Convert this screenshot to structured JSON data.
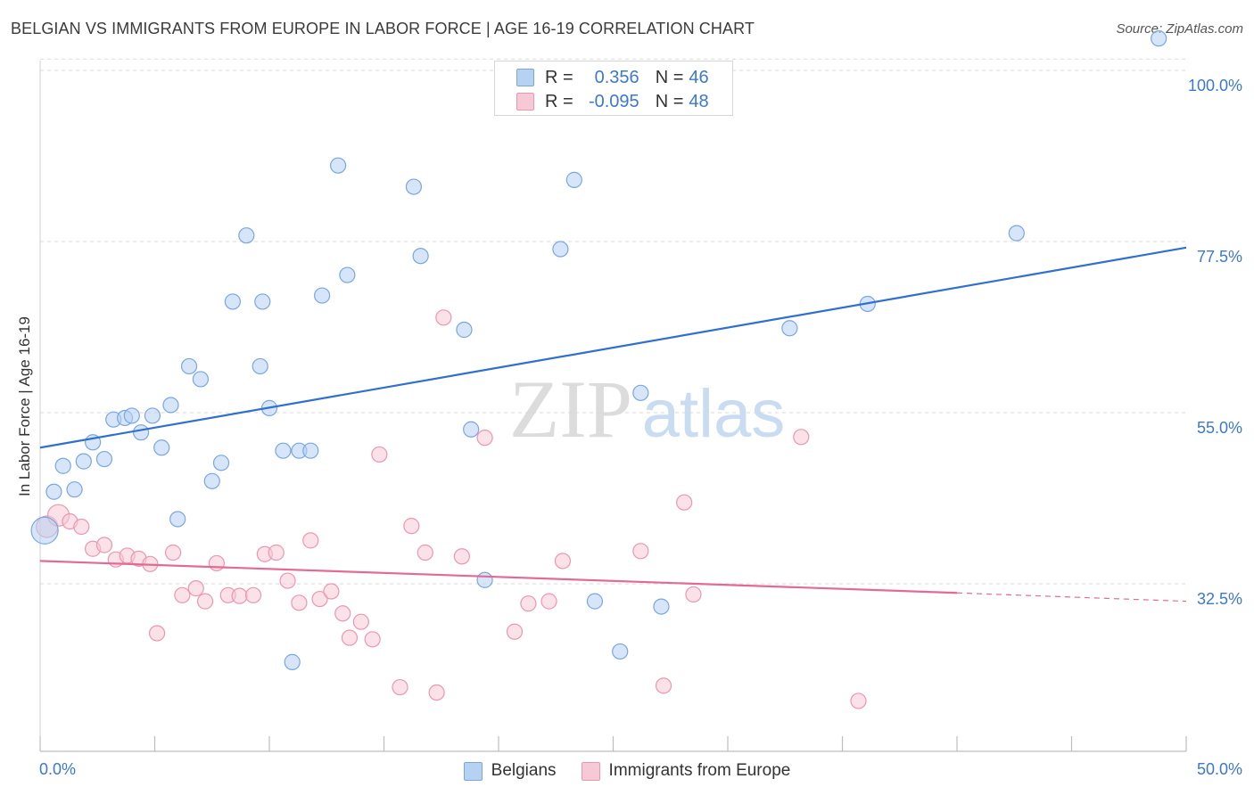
{
  "title": "BELGIAN VS IMMIGRANTS FROM EUROPE IN LABOR FORCE | AGE 16-19 CORRELATION CHART",
  "source": "Source: ZipAtlas.com",
  "watermark": {
    "zip": "ZIP",
    "atlas": "atlas"
  },
  "colors": {
    "blue_fill": "#b5d2f3",
    "blue_stroke": "#7aa6e0",
    "blue_line": "#2f6fcf",
    "pink_fill": "#f7c8d6",
    "pink_stroke": "#eb97b2",
    "pink_line": "#e46a95",
    "tick_label": "#3c78d0",
    "grid": "#d9d9d9"
  },
  "legend": {
    "rows": [
      {
        "r_label": "R =",
        "r_value": "0.356",
        "n_label": "N =",
        "n_value": "46"
      },
      {
        "r_label": "R =",
        "r_value": "-0.095",
        "n_label": "N =",
        "n_value": "48"
      }
    ]
  },
  "bottom_legend": [
    "Belgians",
    "Immigrants from Europe"
  ],
  "chart_data": {
    "type": "scatter",
    "title": "BELGIAN VS IMMIGRANTS FROM EUROPE IN LABOR FORCE | AGE 16-19 CORRELATION CHART",
    "xlabel": "",
    "ylabel": "In Labor Force | Age 16-19",
    "xlim": [
      0,
      50
    ],
    "ylim": [
      9,
      102
    ],
    "x_tick_labels": [
      "0.0%",
      "50.0%"
    ],
    "y_ticks": [
      32.5,
      55.0,
      77.5,
      100.0
    ],
    "y_tick_labels": [
      "32.5%",
      "55.0%",
      "77.5%",
      "100.0%"
    ],
    "grid": true,
    "legend_position": "top-center",
    "series": [
      {
        "name": "Belgians",
        "color": "#7aa6e0",
        "R": 0.356,
        "N": 46,
        "trend": {
          "x0": 0,
          "y0": 50.4,
          "x1": 50,
          "y1": 76.7
        },
        "points": [
          [
            0.2,
            39.5
          ],
          [
            0.6,
            44.6
          ],
          [
            1.0,
            48.0
          ],
          [
            1.5,
            44.9
          ],
          [
            1.9,
            48.6
          ],
          [
            2.3,
            51.1
          ],
          [
            2.8,
            48.9
          ],
          [
            3.2,
            54.1
          ],
          [
            3.7,
            54.3
          ],
          [
            4.0,
            54.6
          ],
          [
            4.4,
            52.4
          ],
          [
            4.9,
            54.6
          ],
          [
            5.3,
            50.4
          ],
          [
            5.7,
            56.0
          ],
          [
            6.0,
            41.0
          ],
          [
            6.5,
            61.1
          ],
          [
            7.0,
            59.4
          ],
          [
            7.5,
            46.0
          ],
          [
            7.9,
            48.4
          ],
          [
            8.4,
            69.6
          ],
          [
            9.0,
            78.3
          ],
          [
            9.6,
            61.1
          ],
          [
            9.7,
            69.6
          ],
          [
            10.0,
            55.6
          ],
          [
            10.6,
            50.0
          ],
          [
            11.0,
            22.2
          ],
          [
            11.3,
            50.0
          ],
          [
            11.8,
            50.0
          ],
          [
            12.3,
            70.4
          ],
          [
            13.0,
            87.5
          ],
          [
            13.4,
            73.1
          ],
          [
            16.3,
            84.7
          ],
          [
            16.6,
            75.6
          ],
          [
            18.5,
            65.9
          ],
          [
            18.8,
            52.8
          ],
          [
            19.4,
            33.0
          ],
          [
            22.7,
            76.5
          ],
          [
            23.3,
            85.6
          ],
          [
            24.2,
            30.2
          ],
          [
            25.3,
            23.6
          ],
          [
            26.2,
            57.6
          ],
          [
            27.1,
            29.5
          ],
          [
            32.7,
            66.1
          ],
          [
            36.1,
            69.3
          ],
          [
            42.6,
            78.6
          ],
          [
            48.8,
            104.2
          ]
        ],
        "point_sizes": {
          "large": [
            [
              0.2,
              39.5
            ]
          ]
        }
      },
      {
        "name": "Immigrants from Europe",
        "color": "#eb97b2",
        "R": -0.095,
        "N": 48,
        "trend": {
          "x0": 0,
          "y0": 35.5,
          "x1": 40,
          "y1": 31.3,
          "dashed_to_x": 50,
          "dashed_to_y": 30.2
        },
        "points": [
          [
            0.3,
            40.0
          ],
          [
            0.8,
            41.5
          ],
          [
            1.3,
            40.7
          ],
          [
            1.8,
            40.0
          ],
          [
            2.3,
            37.1
          ],
          [
            2.8,
            37.6
          ],
          [
            3.3,
            35.7
          ],
          [
            3.8,
            36.2
          ],
          [
            4.3,
            35.8
          ],
          [
            4.8,
            35.1
          ],
          [
            5.1,
            26.0
          ],
          [
            5.8,
            36.6
          ],
          [
            6.2,
            31.0
          ],
          [
            6.8,
            31.9
          ],
          [
            7.2,
            30.2
          ],
          [
            7.7,
            35.2
          ],
          [
            8.2,
            31.0
          ],
          [
            8.7,
            30.9
          ],
          [
            9.3,
            31.0
          ],
          [
            9.8,
            36.4
          ],
          [
            10.3,
            36.6
          ],
          [
            10.8,
            32.9
          ],
          [
            11.3,
            30.0
          ],
          [
            11.8,
            38.2
          ],
          [
            12.2,
            30.5
          ],
          [
            12.7,
            31.5
          ],
          [
            13.2,
            28.6
          ],
          [
            13.5,
            25.4
          ],
          [
            14.0,
            27.5
          ],
          [
            14.5,
            25.2
          ],
          [
            15.7,
            18.9
          ],
          [
            16.2,
            40.1
          ],
          [
            16.8,
            36.6
          ],
          [
            17.3,
            18.2
          ],
          [
            17.6,
            67.5
          ],
          [
            18.4,
            36.1
          ],
          [
            19.4,
            51.7
          ],
          [
            20.7,
            26.2
          ],
          [
            21.3,
            29.9
          ],
          [
            22.2,
            30.2
          ],
          [
            22.8,
            35.5
          ],
          [
            26.2,
            36.8
          ],
          [
            27.2,
            19.1
          ],
          [
            28.1,
            43.2
          ],
          [
            28.5,
            31.1
          ],
          [
            33.2,
            51.8
          ],
          [
            35.7,
            17.1
          ],
          [
            14.8,
            49.5
          ]
        ]
      }
    ]
  }
}
